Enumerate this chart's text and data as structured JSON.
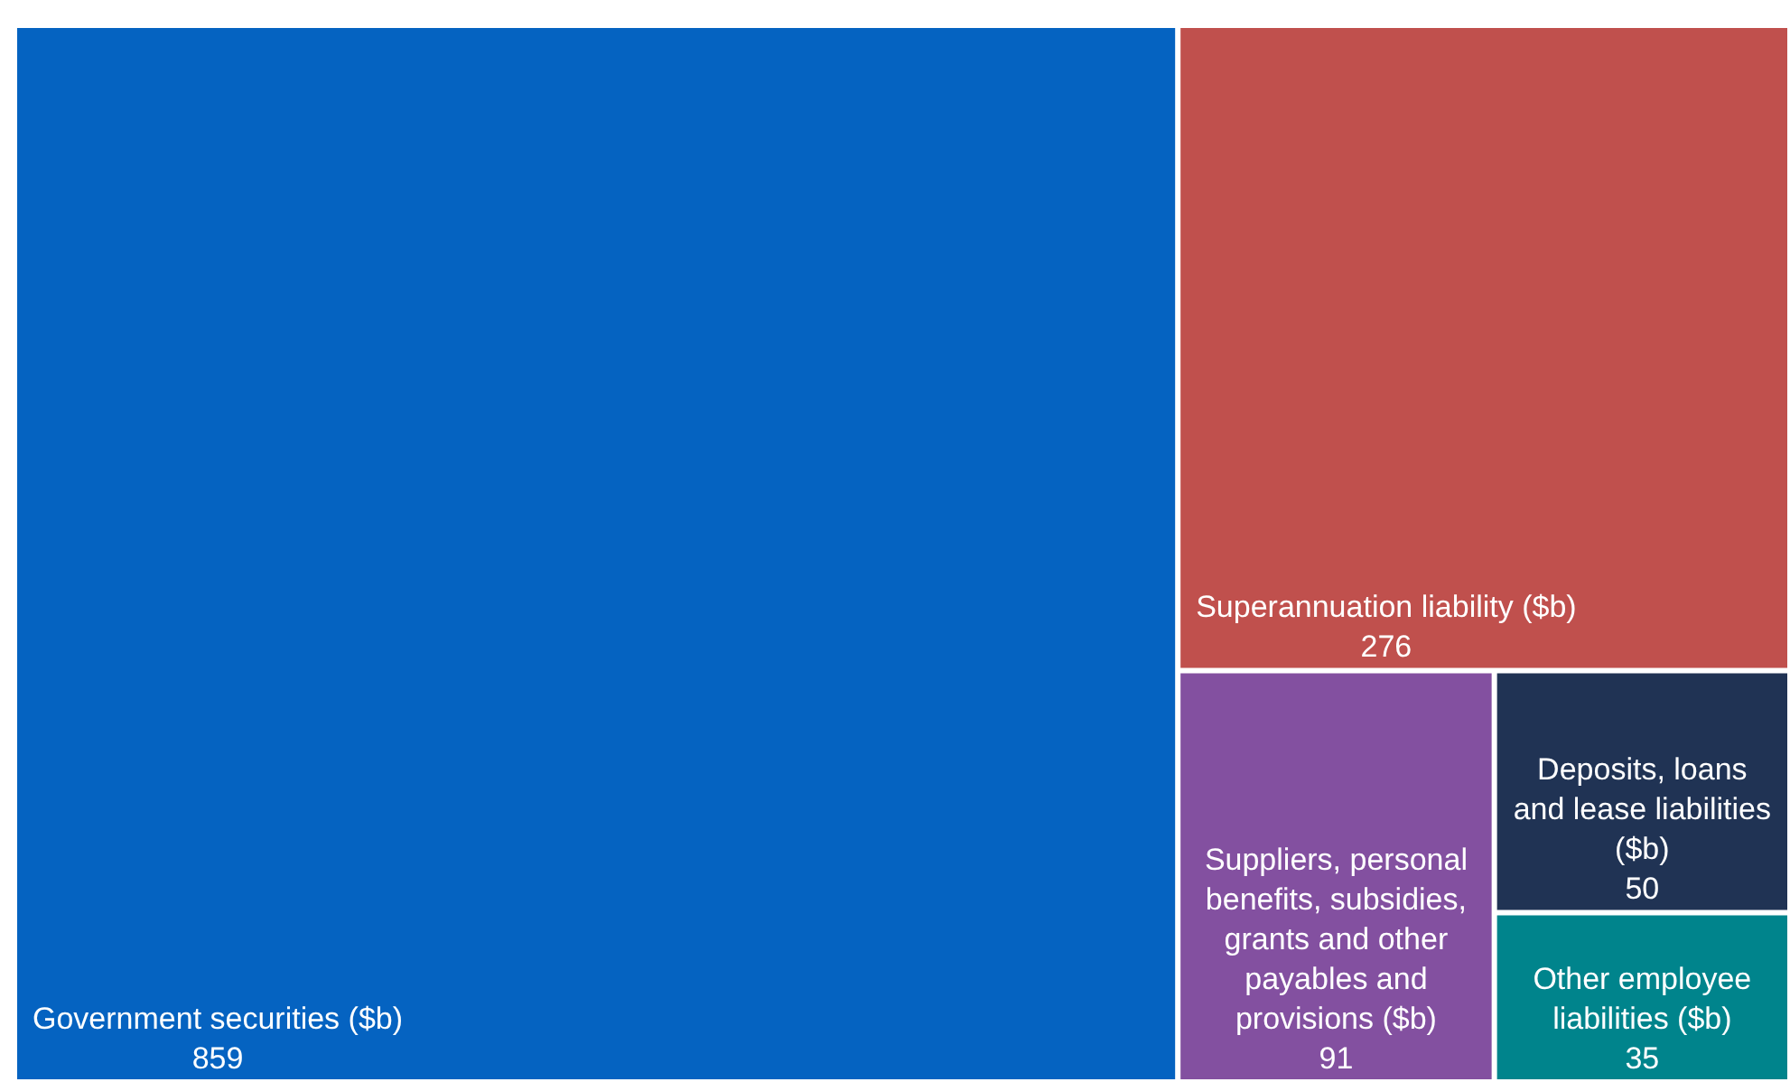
{
  "chart_data": {
    "type": "other",
    "categories": [
      "Government securities ($b)",
      "Superannuation liability ($b)",
      "Suppliers, personal benefits, subsidies, grants and other payables and provisions ($b)",
      "Deposits, loans and lease liabilities ($b)",
      "Other employee liabilities ($b)"
    ],
    "values": [
      859,
      276,
      91,
      50,
      35
    ],
    "colors": [
      "#0563c1",
      "#c0504d",
      "#8350a0",
      "#203354",
      "#00848c"
    ],
    "data_labels": true
  }
}
